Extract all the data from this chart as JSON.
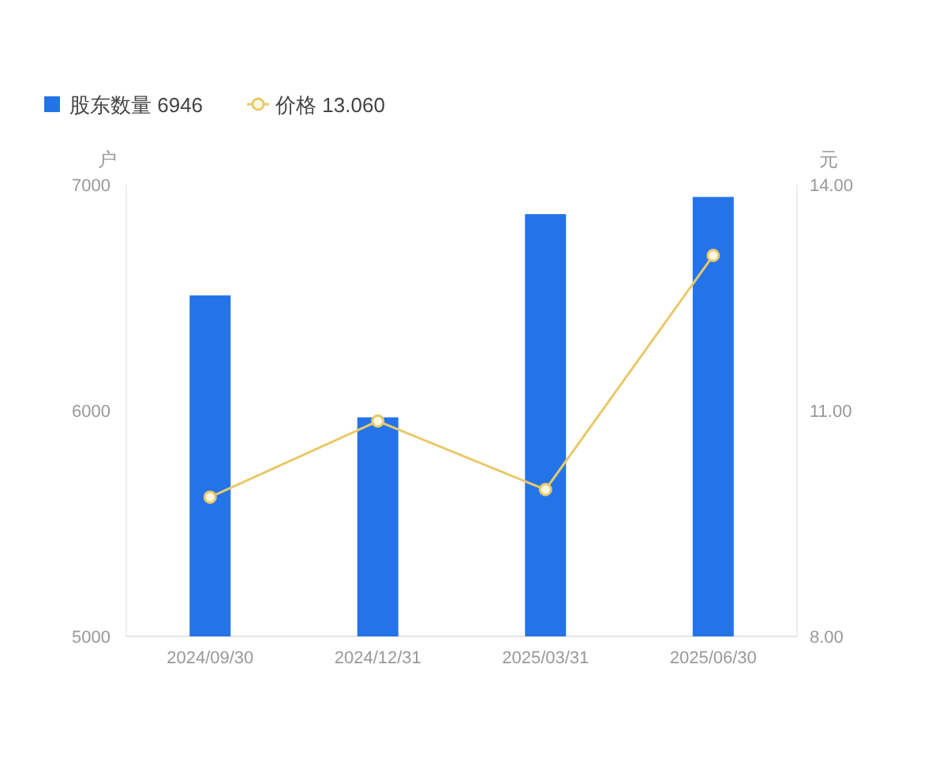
{
  "chart_data": {
    "type": "bar",
    "categories": [
      "2024/09/30",
      "2024/12/31",
      "2025/03/31",
      "2025/06/30"
    ],
    "series": [
      {
        "name": "股东数量 6946",
        "color": "#2473e8",
        "values": [
          6510,
          5970,
          6870,
          6946
        ]
      },
      {
        "name": "价格 13.060",
        "type": "line",
        "axis": "y2",
        "color": "#e8c96a",
        "marker": "circle",
        "values": [
          9.85,
          10.86,
          9.95,
          13.06
        ]
      }
    ],
    "ylabel": "户",
    "y2label": "元",
    "ylim": [
      5000,
      7000
    ],
    "yticks": [
      5000,
      6000,
      7000
    ],
    "y2lim": [
      8,
      14
    ],
    "y2ticks": [
      {
        "value": 8,
        "label": "8.00"
      },
      {
        "value": 11,
        "label": "11.00"
      },
      {
        "value": 14,
        "label": "14.00"
      }
    ],
    "grid": false,
    "legend": "top left"
  }
}
